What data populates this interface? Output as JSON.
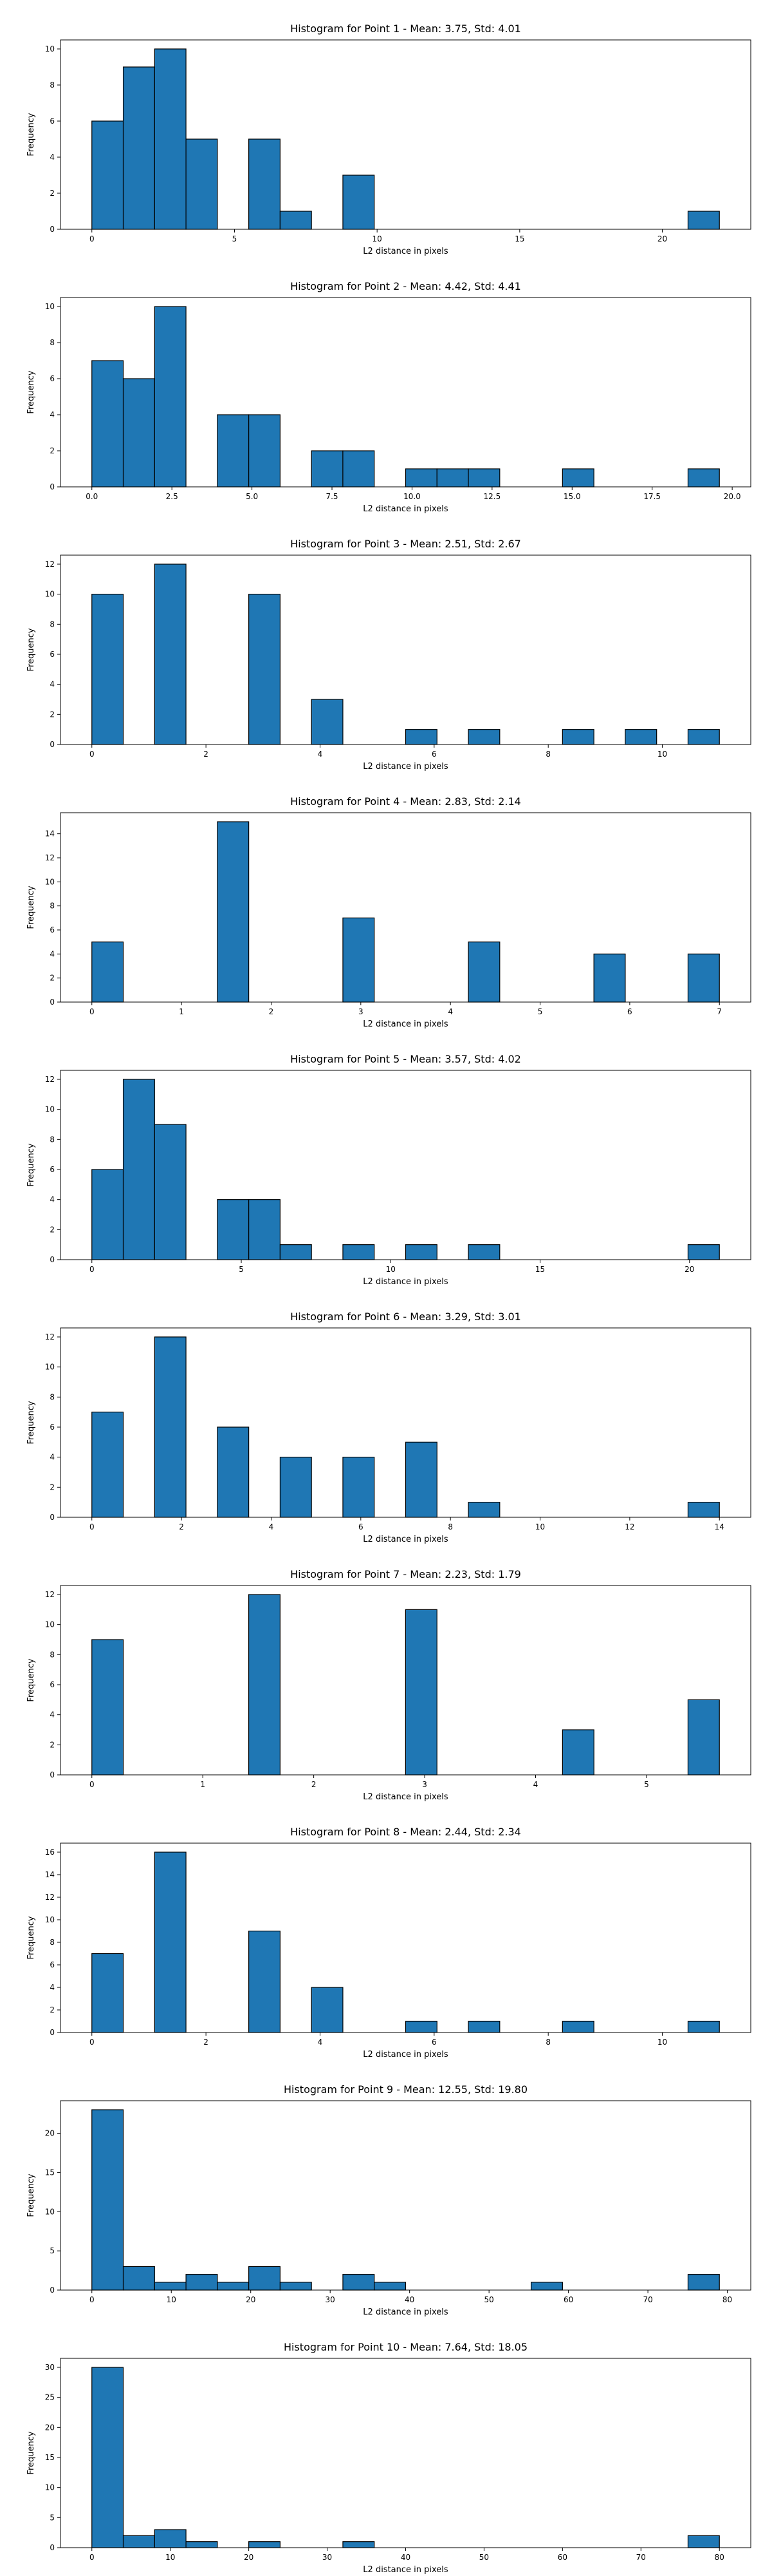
{
  "chart_data": [
    {
      "type": "bar",
      "title": "Histogram for Point 1 - Mean: 3.75, Std: 4.01",
      "xlabel": "L2 distance in pixels",
      "ylabel": "Frequency",
      "bin_edges": [
        0,
        1.1,
        2.2,
        3.3,
        4.4,
        5.5,
        6.6,
        7.7,
        8.8,
        9.9,
        11.0,
        12.1,
        13.2,
        14.3,
        15.4,
        16.5,
        17.6,
        18.7,
        19.8,
        20.9,
        22.0
      ],
      "values": [
        6,
        9,
        10,
        5,
        0,
        5,
        1,
        0,
        3,
        0,
        0,
        0,
        0,
        0,
        0,
        0,
        0,
        0,
        0,
        1
      ],
      "xticks": [
        {
          "v": 0,
          "label": "0"
        },
        {
          "v": 5,
          "label": "5"
        },
        {
          "v": 10,
          "label": "10"
        },
        {
          "v": 15,
          "label": "15"
        },
        {
          "v": 20,
          "label": "20"
        }
      ],
      "yticks": [
        {
          "v": 0,
          "label": "0"
        },
        {
          "v": 2,
          "label": "2"
        },
        {
          "v": 4,
          "label": "4"
        },
        {
          "v": 6,
          "label": "6"
        },
        {
          "v": 8,
          "label": "8"
        },
        {
          "v": 10,
          "label": "10"
        }
      ],
      "ylim": [
        0,
        10.5
      ]
    },
    {
      "type": "bar",
      "title": "Histogram for Point 2 - Mean: 4.42, Std: 4.41",
      "xlabel": "L2 distance in pixels",
      "ylabel": "Frequency",
      "bin_edges": [
        0,
        0.98,
        1.96,
        2.94,
        3.92,
        4.9,
        5.88,
        6.86,
        7.84,
        8.82,
        9.8,
        10.78,
        11.76,
        12.74,
        13.72,
        14.7,
        15.68,
        16.66,
        17.64,
        18.62,
        19.6
      ],
      "values": [
        7,
        6,
        10,
        0,
        4,
        4,
        0,
        2,
        2,
        0,
        1,
        1,
        1,
        0,
        0,
        1,
        0,
        0,
        0,
        1
      ],
      "xticks": [
        {
          "v": 0,
          "label": "0.0"
        },
        {
          "v": 2.5,
          "label": "2.5"
        },
        {
          "v": 5,
          "label": "5.0"
        },
        {
          "v": 7.5,
          "label": "7.5"
        },
        {
          "v": 10,
          "label": "10.0"
        },
        {
          "v": 12.5,
          "label": "12.5"
        },
        {
          "v": 15,
          "label": "15.0"
        },
        {
          "v": 17.5,
          "label": "17.5"
        },
        {
          "v": 20,
          "label": "20.0"
        }
      ],
      "yticks": [
        {
          "v": 0,
          "label": "0"
        },
        {
          "v": 2,
          "label": "2"
        },
        {
          "v": 4,
          "label": "4"
        },
        {
          "v": 6,
          "label": "6"
        },
        {
          "v": 8,
          "label": "8"
        },
        {
          "v": 10,
          "label": "10"
        }
      ],
      "ylim": [
        0,
        10.5
      ]
    },
    {
      "type": "bar",
      "title": "Histogram for Point 3 - Mean: 2.51, Std: 2.67",
      "xlabel": "L2 distance in pixels",
      "ylabel": "Frequency",
      "bin_edges": [
        0,
        0.55,
        1.1,
        1.65,
        2.2,
        2.75,
        3.3,
        3.85,
        4.4,
        4.95,
        5.5,
        6.05,
        6.6,
        7.15,
        7.7,
        8.25,
        8.8,
        9.35,
        9.9,
        10.45,
        11.0
      ],
      "values": [
        10,
        0,
        12,
        0,
        0,
        10,
        0,
        3,
        0,
        0,
        1,
        0,
        1,
        0,
        0,
        1,
        0,
        1,
        0,
        1
      ],
      "xticks": [
        {
          "v": 0,
          "label": "0"
        },
        {
          "v": 2,
          "label": "2"
        },
        {
          "v": 4,
          "label": "4"
        },
        {
          "v": 6,
          "label": "6"
        },
        {
          "v": 8,
          "label": "8"
        },
        {
          "v": 10,
          "label": "10"
        }
      ],
      "yticks": [
        {
          "v": 0,
          "label": "0"
        },
        {
          "v": 2,
          "label": "2"
        },
        {
          "v": 4,
          "label": "4"
        },
        {
          "v": 6,
          "label": "6"
        },
        {
          "v": 8,
          "label": "8"
        },
        {
          "v": 10,
          "label": "10"
        },
        {
          "v": 12,
          "label": "12"
        }
      ],
      "ylim": [
        0,
        12.6
      ]
    },
    {
      "type": "bar",
      "title": "Histogram for Point 4 - Mean: 2.83, Std: 2.14",
      "xlabel": "L2 distance in pixels",
      "ylabel": "Frequency",
      "bin_edges": [
        0,
        0.35,
        0.7,
        1.05,
        1.4,
        1.75,
        2.1,
        2.45,
        2.8,
        3.15,
        3.5,
        3.85,
        4.2,
        4.55,
        4.9,
        5.25,
        5.6,
        5.95,
        6.3,
        6.65,
        7.0
      ],
      "values": [
        5,
        0,
        0,
        0,
        15,
        0,
        0,
        0,
        7,
        0,
        0,
        0,
        5,
        0,
        0,
        0,
        4,
        0,
        0,
        4
      ],
      "xticks": [
        {
          "v": 0,
          "label": "0"
        },
        {
          "v": 1,
          "label": "1"
        },
        {
          "v": 2,
          "label": "2"
        },
        {
          "v": 3,
          "label": "3"
        },
        {
          "v": 4,
          "label": "4"
        },
        {
          "v": 5,
          "label": "5"
        },
        {
          "v": 6,
          "label": "6"
        },
        {
          "v": 7,
          "label": "7"
        }
      ],
      "yticks": [
        {
          "v": 0,
          "label": "0"
        },
        {
          "v": 2,
          "label": "2"
        },
        {
          "v": 4,
          "label": "4"
        },
        {
          "v": 6,
          "label": "6"
        },
        {
          "v": 8,
          "label": "8"
        },
        {
          "v": 10,
          "label": "10"
        },
        {
          "v": 12,
          "label": "12"
        },
        {
          "v": 14,
          "label": "14"
        }
      ],
      "ylim": [
        0,
        15.75
      ]
    },
    {
      "type": "bar",
      "title": "Histogram for Point 5 - Mean: 3.57, Std: 4.02",
      "xlabel": "L2 distance in pixels",
      "ylabel": "Frequency",
      "bin_edges": [
        0,
        1.05,
        2.1,
        3.15,
        4.2,
        5.25,
        6.3,
        7.35,
        8.4,
        9.45,
        10.5,
        11.55,
        12.6,
        13.65,
        14.7,
        15.75,
        16.8,
        17.85,
        18.9,
        19.95,
        21.0
      ],
      "values": [
        6,
        12,
        9,
        0,
        4,
        4,
        1,
        0,
        1,
        0,
        1,
        0,
        1,
        0,
        0,
        0,
        0,
        0,
        0,
        1
      ],
      "xticks": [
        {
          "v": 0,
          "label": "0"
        },
        {
          "v": 5,
          "label": "5"
        },
        {
          "v": 10,
          "label": "10"
        },
        {
          "v": 15,
          "label": "15"
        },
        {
          "v": 20,
          "label": "20"
        }
      ],
      "yticks": [
        {
          "v": 0,
          "label": "0"
        },
        {
          "v": 2,
          "label": "2"
        },
        {
          "v": 4,
          "label": "4"
        },
        {
          "v": 6,
          "label": "6"
        },
        {
          "v": 8,
          "label": "8"
        },
        {
          "v": 10,
          "label": "10"
        },
        {
          "v": 12,
          "label": "12"
        }
      ],
      "ylim": [
        0,
        12.6
      ]
    },
    {
      "type": "bar",
      "title": "Histogram for Point 6 - Mean: 3.29, Std: 3.01",
      "xlabel": "L2 distance in pixels",
      "ylabel": "Frequency",
      "bin_edges": [
        0,
        0.7,
        1.4,
        2.1,
        2.8,
        3.5,
        4.2,
        4.9,
        5.6,
        6.3,
        7.0,
        7.7,
        8.4,
        9.1,
        9.8,
        10.5,
        11.2,
        11.9,
        12.6,
        13.3,
        14.0
      ],
      "values": [
        7,
        0,
        12,
        0,
        6,
        0,
        4,
        0,
        4,
        0,
        5,
        0,
        1,
        0,
        0,
        0,
        0,
        0,
        0,
        1
      ],
      "xticks": [
        {
          "v": 0,
          "label": "0"
        },
        {
          "v": 2,
          "label": "2"
        },
        {
          "v": 4,
          "label": "4"
        },
        {
          "v": 6,
          "label": "6"
        },
        {
          "v": 8,
          "label": "8"
        },
        {
          "v": 10,
          "label": "10"
        },
        {
          "v": 12,
          "label": "12"
        },
        {
          "v": 14,
          "label": "14"
        }
      ],
      "yticks": [
        {
          "v": 0,
          "label": "0"
        },
        {
          "v": 2,
          "label": "2"
        },
        {
          "v": 4,
          "label": "4"
        },
        {
          "v": 6,
          "label": "6"
        },
        {
          "v": 8,
          "label": "8"
        },
        {
          "v": 10,
          "label": "10"
        },
        {
          "v": 12,
          "label": "12"
        }
      ],
      "ylim": [
        0,
        12.6
      ]
    },
    {
      "type": "bar",
      "title": "Histogram for Point 7 - Mean: 2.23, Std: 1.79",
      "xlabel": "L2 distance in pixels",
      "ylabel": "Frequency",
      "bin_edges": [
        0,
        0.283,
        0.566,
        0.849,
        1.131,
        1.414,
        1.697,
        1.98,
        2.263,
        2.546,
        2.828,
        3.111,
        3.394,
        3.677,
        3.96,
        4.243,
        4.526,
        4.808,
        5.091,
        5.374,
        5.657
      ],
      "values": [
        9,
        0,
        0,
        0,
        0,
        12,
        0,
        0,
        0,
        0,
        11,
        0,
        0,
        0,
        0,
        3,
        0,
        0,
        0,
        5
      ],
      "xticks": [
        {
          "v": 0,
          "label": "0"
        },
        {
          "v": 1,
          "label": "1"
        },
        {
          "v": 2,
          "label": "2"
        },
        {
          "v": 3,
          "label": "3"
        },
        {
          "v": 4,
          "label": "4"
        },
        {
          "v": 5,
          "label": "5"
        }
      ],
      "yticks": [
        {
          "v": 0,
          "label": "0"
        },
        {
          "v": 2,
          "label": "2"
        },
        {
          "v": 4,
          "label": "4"
        },
        {
          "v": 6,
          "label": "6"
        },
        {
          "v": 8,
          "label": "8"
        },
        {
          "v": 10,
          "label": "10"
        },
        {
          "v": 12,
          "label": "12"
        }
      ],
      "ylim": [
        0,
        12.6
      ]
    },
    {
      "type": "bar",
      "title": "Histogram for Point 8 - Mean: 2.44, Std: 2.34",
      "xlabel": "L2 distance in pixels",
      "ylabel": "Frequency",
      "bin_edges": [
        0,
        0.55,
        1.1,
        1.65,
        2.2,
        2.75,
        3.3,
        3.85,
        4.4,
        4.95,
        5.5,
        6.05,
        6.6,
        7.15,
        7.7,
        8.25,
        8.8,
        9.35,
        9.9,
        10.45,
        11.0
      ],
      "values": [
        7,
        0,
        16,
        0,
        0,
        9,
        0,
        4,
        0,
        0,
        1,
        0,
        1,
        0,
        0,
        1,
        0,
        0,
        0,
        1
      ],
      "xticks": [
        {
          "v": 0,
          "label": "0"
        },
        {
          "v": 2,
          "label": "2"
        },
        {
          "v": 4,
          "label": "4"
        },
        {
          "v": 6,
          "label": "6"
        },
        {
          "v": 8,
          "label": "8"
        },
        {
          "v": 10,
          "label": "10"
        }
      ],
      "yticks": [
        {
          "v": 0,
          "label": "0"
        },
        {
          "v": 2,
          "label": "2"
        },
        {
          "v": 4,
          "label": "4"
        },
        {
          "v": 6,
          "label": "6"
        },
        {
          "v": 8,
          "label": "8"
        },
        {
          "v": 10,
          "label": "10"
        },
        {
          "v": 12,
          "label": "12"
        },
        {
          "v": 14,
          "label": "14"
        },
        {
          "v": 16,
          "label": "16"
        }
      ],
      "ylim": [
        0,
        16.8
      ]
    },
    {
      "type": "bar",
      "title": "Histogram for Point 9 - Mean: 12.55, Std: 19.80",
      "xlabel": "L2 distance in pixels",
      "ylabel": "Frequency",
      "bin_edges": [
        0,
        3.95,
        7.9,
        11.85,
        15.8,
        19.75,
        23.7,
        27.65,
        31.6,
        35.55,
        39.5,
        43.45,
        47.4,
        51.35,
        55.3,
        59.25,
        63.2,
        67.15,
        71.1,
        75.05,
        79.0
      ],
      "values": [
        23,
        3,
        1,
        2,
        1,
        3,
        1,
        0,
        2,
        1,
        0,
        0,
        0,
        0,
        1,
        0,
        0,
        0,
        0,
        2
      ],
      "xticks": [
        {
          "v": 0,
          "label": "0"
        },
        {
          "v": 10,
          "label": "10"
        },
        {
          "v": 20,
          "label": "20"
        },
        {
          "v": 30,
          "label": "30"
        },
        {
          "v": 40,
          "label": "40"
        },
        {
          "v": 50,
          "label": "50"
        },
        {
          "v": 60,
          "label": "60"
        },
        {
          "v": 70,
          "label": "70"
        },
        {
          "v": 80,
          "label": "80"
        }
      ],
      "yticks": [
        {
          "v": 0,
          "label": "0"
        },
        {
          "v": 5,
          "label": "5"
        },
        {
          "v": 10,
          "label": "10"
        },
        {
          "v": 15,
          "label": "15"
        },
        {
          "v": 20,
          "label": "20"
        }
      ],
      "ylim": [
        0,
        24.15
      ]
    },
    {
      "type": "bar",
      "title": "Histogram for Point 10 - Mean: 7.64, Std: 18.05",
      "xlabel": "L2 distance in pixels",
      "ylabel": "Frequency",
      "bin_edges": [
        0,
        4.0,
        8.0,
        12.0,
        16.0,
        20.0,
        24.0,
        28.0,
        32.0,
        36.0,
        40.0,
        44.0,
        48.0,
        52.0,
        56.0,
        60.0,
        64.0,
        68.0,
        72.0,
        76.0,
        80.0
      ],
      "values": [
        30,
        2,
        3,
        1,
        0,
        1,
        0,
        0,
        1,
        0,
        0,
        0,
        0,
        0,
        0,
        0,
        0,
        0,
        0,
        2
      ],
      "xticks": [
        {
          "v": 0,
          "label": "0"
        },
        {
          "v": 10,
          "label": "10"
        },
        {
          "v": 20,
          "label": "20"
        },
        {
          "v": 30,
          "label": "30"
        },
        {
          "v": 40,
          "label": "40"
        },
        {
          "v": 50,
          "label": "50"
        },
        {
          "v": 60,
          "label": "60"
        },
        {
          "v": 70,
          "label": "70"
        },
        {
          "v": 80,
          "label": "80"
        }
      ],
      "yticks": [
        {
          "v": 0,
          "label": "0"
        },
        {
          "v": 5,
          "label": "5"
        },
        {
          "v": 10,
          "label": "10"
        },
        {
          "v": 15,
          "label": "15"
        },
        {
          "v": 20,
          "label": "20"
        },
        {
          "v": 25,
          "label": "25"
        },
        {
          "v": 30,
          "label": "30"
        }
      ],
      "ylim": [
        0,
        31.5
      ]
    }
  ]
}
